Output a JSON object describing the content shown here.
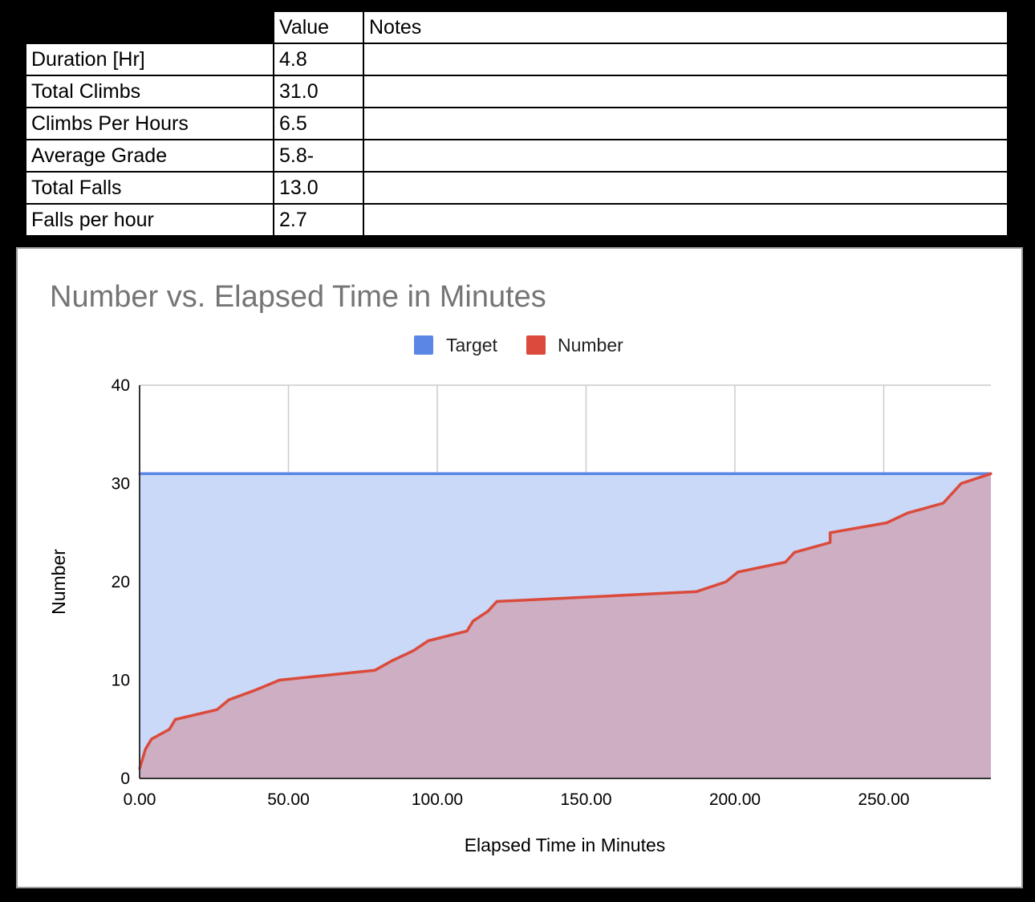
{
  "table": {
    "header": [
      "",
      "Value",
      "Notes"
    ],
    "rows": [
      {
        "label": "Duration [Hr]",
        "value": "4.8",
        "notes": ""
      },
      {
        "label": "Total Climbs",
        "value": "31.0",
        "notes": ""
      },
      {
        "label": "Climbs Per Hours",
        "value": "6.5",
        "notes": ""
      },
      {
        "label": "Average Grade",
        "value": "5.8-",
        "notes": ""
      },
      {
        "label": "Total Falls",
        "value": "13.0",
        "notes": ""
      },
      {
        "label": "Falls per hour",
        "value": "2.7",
        "notes": ""
      }
    ]
  },
  "chart_data": {
    "type": "area",
    "title": "Number vs. Elapsed Time in Minutes",
    "xlabel": "Elapsed Time in Minutes",
    "ylabel": "Number",
    "xlim": [
      0,
      286
    ],
    "ylim": [
      0,
      40
    ],
    "x_ticks": [
      0,
      50,
      100,
      150,
      200,
      250
    ],
    "x_tick_labels": [
      "0.00",
      "50.00",
      "100.00",
      "150.00",
      "200.00",
      "250.00"
    ],
    "y_ticks": [
      0,
      10,
      20,
      30,
      40
    ],
    "y_tick_labels": [
      "0",
      "10",
      "20",
      "30",
      "40"
    ],
    "grid": true,
    "legend_position": "top",
    "series": [
      {
        "name": "Target",
        "color": "#5b86e5",
        "fill": "#c9d9f7",
        "x": [
          0,
          286
        ],
        "y": [
          31,
          31
        ]
      },
      {
        "name": "Number",
        "color": "#db4a3b",
        "fill": "#cdaec2",
        "x": [
          0,
          2,
          4,
          10,
          12,
          26,
          30,
          39,
          47,
          79,
          85,
          92,
          97,
          110,
          112,
          117,
          120,
          187,
          197,
          201,
          217,
          220,
          232,
          232,
          251,
          258,
          270,
          276,
          286
        ],
        "y": [
          1,
          3,
          4,
          5,
          6,
          7,
          8,
          9,
          10,
          11,
          12,
          13,
          14,
          15,
          16,
          17,
          18,
          19,
          20,
          21,
          22,
          23,
          24,
          25,
          26,
          27,
          28,
          30,
          31
        ]
      }
    ]
  }
}
